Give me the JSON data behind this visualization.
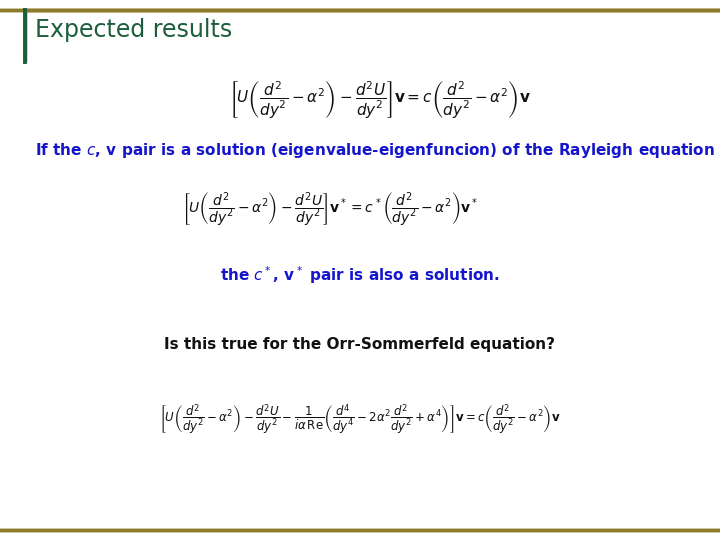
{
  "title": "Expected results",
  "title_color": "#1B5E3B",
  "title_fontsize": 17,
  "border_color": "#8B7A2A",
  "background_color": "#FFFFFF",
  "text_color_blue": "#1515CC",
  "text_color_black": "#111111",
  "eq1": "$\\left[U\\left(\\dfrac{d^2}{dy^2}-\\alpha^2\\right)-\\dfrac{d^2U}{dy^2}\\right]\\mathbf{v} = c\\left(\\dfrac{d^2}{dy^2}-\\alpha^2\\right)\\mathbf{v}$",
  "text1": "If the $c$, $\\mathbf{v}$ pair is a solution (eigenvalue-eigenfuncion) of the Rayleigh equation",
  "eq2": "$\\left[U\\left(\\dfrac{d^2}{dy^2}-\\alpha^2\\right)-\\dfrac{d^2U}{dy^2}\\right]\\mathbf{v}^* = c^*\\left(\\dfrac{d^2}{dy^2}-\\alpha^2\\right)\\mathbf{v}^*$",
  "text2": "the $c^*$, $\\mathbf{v}^*$ pair is also a solution.",
  "text3": "Is this true for the Orr-Sommerfeld equation?",
  "eq3": "$\\left[U\\left(\\dfrac{d^2}{dy^2}-\\alpha^2\\right)-\\dfrac{d^2U}{dy^2}-\\dfrac{1}{i\\alpha\\,\\mathrm{Re}}\\left(\\dfrac{d^4}{dy^4}-2\\alpha^2\\dfrac{d^2}{dy^2}+\\alpha^4\\right)\\right]\\mathbf{v} = c\\left(\\dfrac{d^2}{dy^2}-\\alpha^2\\right)\\mathbf{v}$",
  "eq1_fontsize": 11,
  "eq2_fontsize": 10,
  "eq3_fontsize": 8.5,
  "text1_fontsize": 11,
  "text2_fontsize": 11,
  "text3_fontsize": 11,
  "figsize": [
    7.2,
    5.4
  ],
  "dpi": 100
}
